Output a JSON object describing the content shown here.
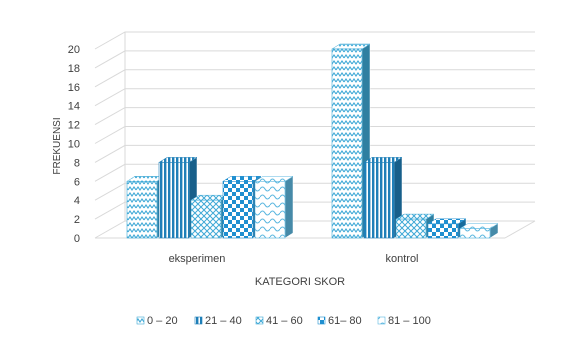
{
  "chart_data": {
    "type": "bar",
    "title": "",
    "xlabel": "KATEGORI SKOR",
    "ylabel": "FREKUENSI",
    "ylim": [
      0,
      20
    ],
    "yticks": [
      0,
      2,
      4,
      6,
      8,
      10,
      12,
      14,
      16,
      18,
      20
    ],
    "grid": true,
    "legend_position": "bottom",
    "categories": [
      "eksperimen",
      "kontrol"
    ],
    "series": [
      {
        "name": "0 – 20",
        "values": [
          6,
          20
        ],
        "pattern": "zigzag",
        "color": "#3FA9D6"
      },
      {
        "name": "21 – 40",
        "values": [
          8,
          8
        ],
        "pattern": "vertical-stripes",
        "color": "#1F7FB8"
      },
      {
        "name": "41 – 60",
        "values": [
          4,
          2
        ],
        "pattern": "diamond",
        "color": "#3FA9D6"
      },
      {
        "name": "61– 80",
        "values": [
          6,
          1.5
        ],
        "pattern": "checker",
        "color": "#1F8FD0"
      },
      {
        "name": "81 – 100",
        "values": [
          6,
          1
        ],
        "pattern": "wave",
        "color": "#5DB8E0"
      }
    ]
  }
}
